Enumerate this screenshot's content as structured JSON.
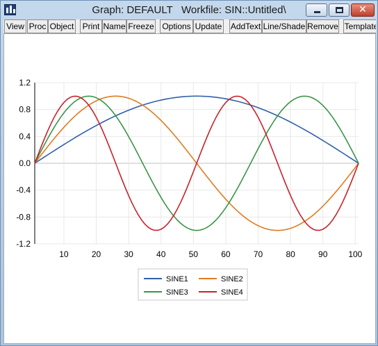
{
  "window": {
    "title": "Graph: DEFAULT   Workfile: SIN::Untitled\\",
    "app_icon": "eviews-graph-icon",
    "controls": {
      "minimize_icon": "minimize-icon",
      "maximize_icon": "maximize-icon",
      "close_icon": "close-icon",
      "close_glyph": "✕"
    }
  },
  "toolbar": {
    "buttons": [
      {
        "label": "View"
      },
      {
        "label": "Proc"
      },
      {
        "label": "Object"
      },
      {
        "label": "Print"
      },
      {
        "label": "Name"
      },
      {
        "label": "Freeze"
      },
      {
        "label": "Options"
      },
      {
        "label": "Update"
      },
      {
        "label": "AddText"
      },
      {
        "label": "Line/Shade"
      },
      {
        "label": "Remove"
      },
      {
        "label": "Template"
      }
    ]
  },
  "colors": {
    "series": [
      "#2e5fa8",
      "#e07b20",
      "#3a9447",
      "#c8202a"
    ],
    "grid": "#e8e8e8",
    "zero_line": "#c0c0c0",
    "axis": "#000000"
  },
  "chart_data": {
    "type": "line",
    "title": "",
    "xlabel": "",
    "ylabel": "",
    "x": {
      "start": 1,
      "end": 101,
      "step": 1
    },
    "xlim": [
      1,
      101
    ],
    "ylim": [
      -1.2,
      1.2
    ],
    "xticks": [
      10,
      20,
      30,
      40,
      50,
      60,
      70,
      80,
      90,
      100
    ],
    "yticks": [
      1.2,
      0.8,
      0.4,
      0.0,
      -0.4,
      -0.8,
      -1.2
    ],
    "ytick_labels": [
      "1.2",
      "0.8",
      "0.4",
      "0.0",
      "-0.4",
      "-0.8",
      "-1.2"
    ],
    "grid": true,
    "legend_position": "bottom-center",
    "series": [
      {
        "name": "SINE1",
        "cycles": 0.5
      },
      {
        "name": "SINE2",
        "cycles": 1.0
      },
      {
        "name": "SINE3",
        "cycles": 1.5
      },
      {
        "name": "SINE4",
        "cycles": 2.0
      }
    ]
  }
}
